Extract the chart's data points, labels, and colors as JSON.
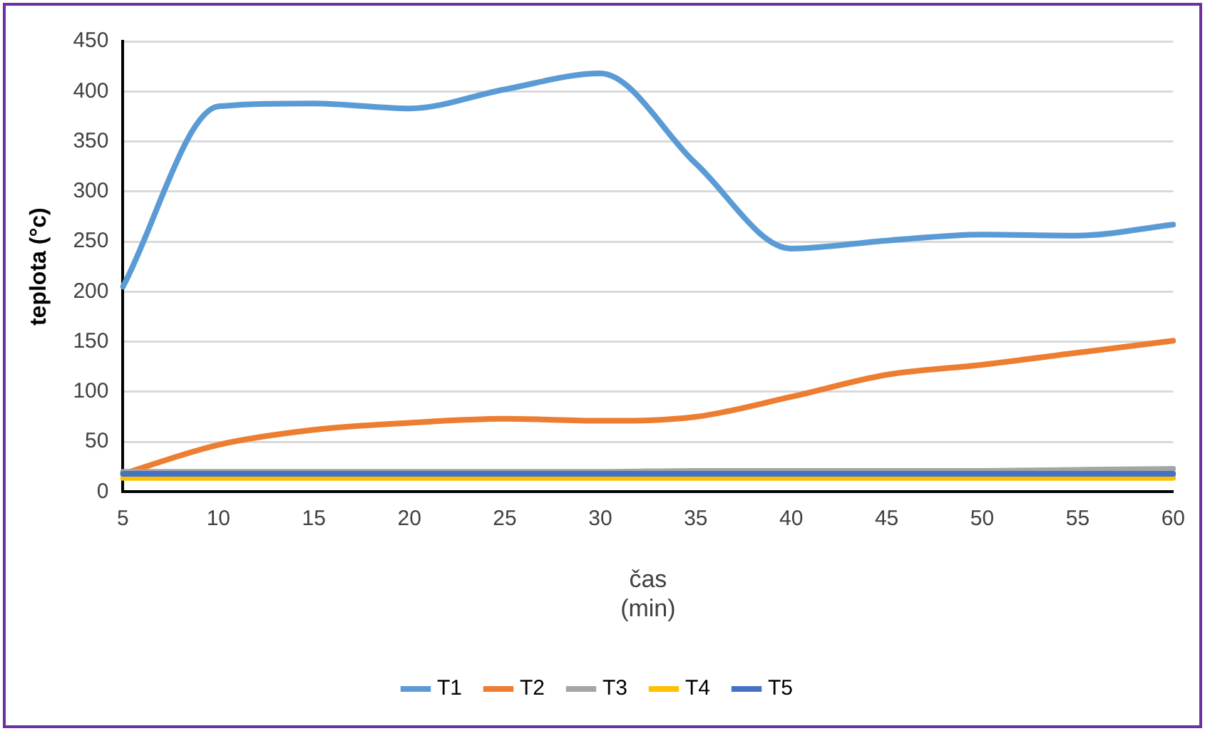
{
  "chart_data": {
    "type": "line",
    "xlabel": "čas\n(min)",
    "ylabel": "teplota (°c)",
    "categories": [
      "5",
      "10",
      "15",
      "20",
      "25",
      "30",
      "35",
      "40",
      "45",
      "50",
      "55",
      "60"
    ],
    "series": [
      {
        "name": "T1",
        "color": "#5b9bd5",
        "values": [
          205,
          385,
          388,
          383,
          402,
          418,
          328,
          243,
          251,
          257,
          256,
          267
        ]
      },
      {
        "name": "T2",
        "color": "#ed7d31",
        "values": [
          18,
          47,
          62,
          69,
          73,
          71,
          75,
          95,
          117,
          127,
          139,
          151
        ]
      },
      {
        "name": "T3",
        "color": "#a5a5a5",
        "values": [
          20,
          20,
          20,
          20,
          20,
          20,
          21,
          21,
          21,
          21,
          22,
          23
        ]
      },
      {
        "name": "T4",
        "color": "#ffc000",
        "values": [
          14,
          14,
          14,
          14,
          14,
          14,
          14,
          14,
          14,
          14,
          14,
          14
        ]
      },
      {
        "name": "T5",
        "color": "#4472c4",
        "values": [
          18,
          18,
          18,
          18,
          18,
          18,
          18,
          18,
          18,
          18,
          18,
          18
        ]
      }
    ],
    "ylim": [
      0,
      450
    ],
    "yticks": [
      0,
      50,
      100,
      150,
      200,
      250,
      300,
      350,
      400,
      450
    ],
    "grid": "y",
    "legend": "bottom",
    "marker": "none",
    "line_style": "solid"
  }
}
